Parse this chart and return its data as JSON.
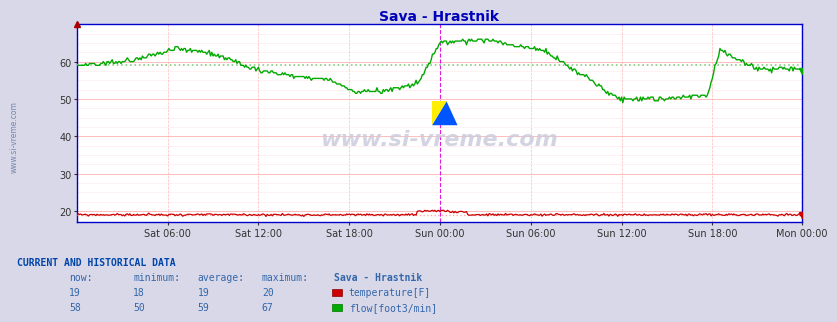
{
  "title": "Sava - Hrastnik",
  "bg_color": "#d8d8e8",
  "plot_bg_color": "#ffffff",
  "grid_color_major": "#ffaaaa",
  "grid_color_minor": "#ffdddd",
  "y_min": 17,
  "y_max": 70,
  "y_ticks": [
    20,
    30,
    40,
    50,
    60
  ],
  "x_labels": [
    "Sat 06:00",
    "Sat 12:00",
    "Sat 18:00",
    "Sun 00:00",
    "Sun 06:00",
    "Sun 12:00",
    "Sun 18:00",
    "Mon 00:00"
  ],
  "temp_color": "#cc0000",
  "flow_color": "#00aa00",
  "avg_temp_color": "#ffaaaa",
  "avg_flow_color": "#88cc88",
  "border_color": "#0000cc",
  "vline_magenta": "#dd00dd",
  "vline_red": "#ffaaaa",
  "watermark": "www.si-vreme.com",
  "table_header": "CURRENT AND HISTORICAL DATA",
  "col_headers": [
    "now:",
    "minimum:",
    "average:",
    "maximum:",
    "Sava - Hrastnik"
  ],
  "temp_row": [
    "19",
    "18",
    "19",
    "20",
    "temperature[F]"
  ],
  "flow_row": [
    "58",
    "50",
    "59",
    "67",
    "flow[foot3/min]"
  ],
  "table_color": "#3366aa",
  "n_points": 576,
  "avg_flow": 59,
  "avg_temp": 19
}
